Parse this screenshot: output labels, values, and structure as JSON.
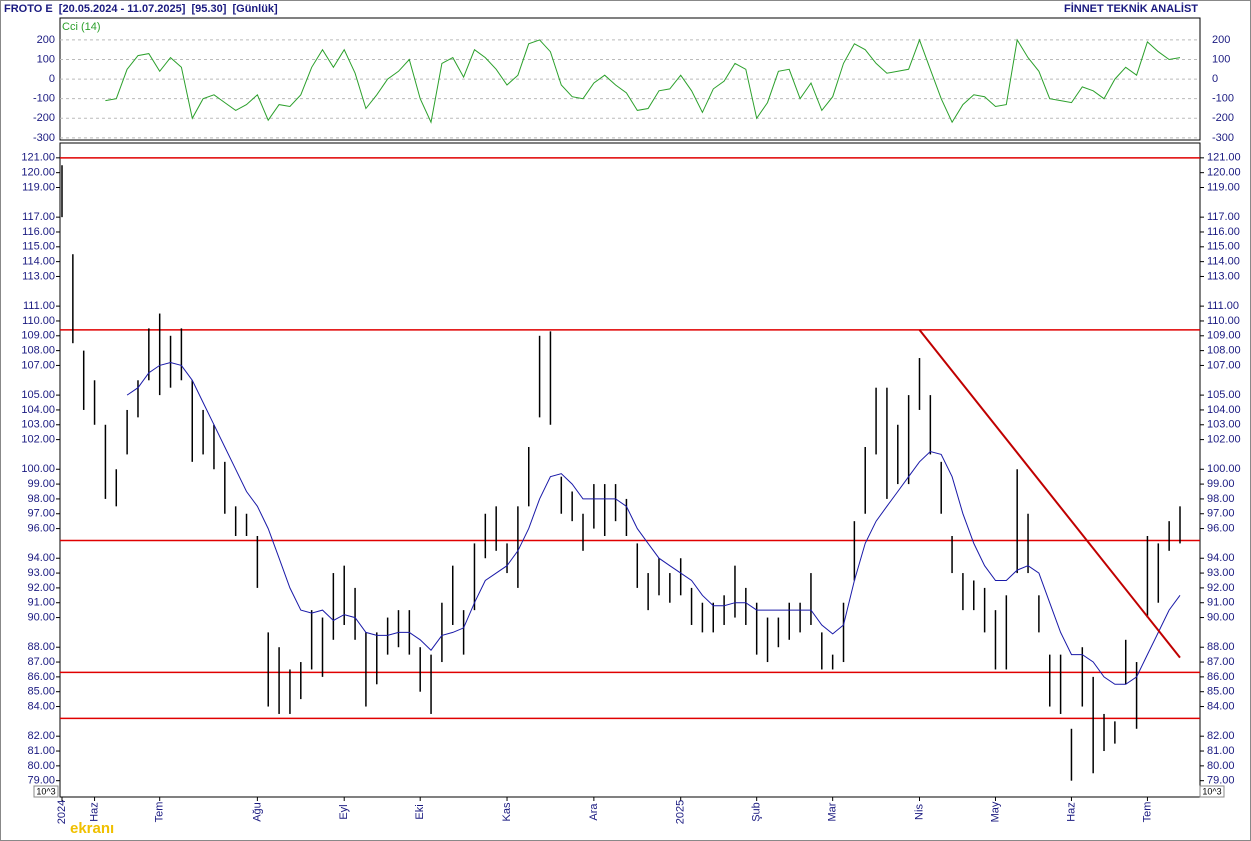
{
  "chart_data": {
    "type": "ohlc",
    "title": "FROTO E  [20.05.2024 - 11.07.2025]  [95.30]  [Günlük]",
    "source": "FİNNET TEKNİK ANALİST",
    "watermark": "ekranı",
    "scale_note": "10^3",
    "categories": [
      "2024",
      null,
      null,
      "Haz",
      null,
      null,
      null,
      null,
      null,
      "Tem",
      null,
      null,
      null,
      null,
      null,
      null,
      null,
      null,
      "Ağu",
      null,
      null,
      null,
      null,
      null,
      null,
      null,
      "Eyl",
      null,
      null,
      null,
      null,
      null,
      null,
      "Eki",
      null,
      null,
      null,
      null,
      null,
      null,
      null,
      "Kas",
      null,
      null,
      null,
      null,
      null,
      null,
      null,
      "Ara",
      null,
      null,
      null,
      null,
      null,
      null,
      null,
      "2025",
      null,
      null,
      null,
      null,
      null,
      null,
      "Şub",
      null,
      null,
      null,
      null,
      null,
      null,
      "Mar",
      null,
      null,
      null,
      null,
      null,
      null,
      null,
      "Nis",
      null,
      null,
      null,
      null,
      null,
      null,
      "May",
      null,
      null,
      null,
      null,
      null,
      null,
      "Haz",
      null,
      null,
      null,
      null,
      null,
      null,
      "Tem",
      null,
      null,
      null
    ],
    "high": [
      120.5,
      114.5,
      108,
      106,
      103,
      100,
      104,
      106,
      109.5,
      110.5,
      109,
      109.5,
      106,
      104,
      103,
      100.5,
      97.5,
      97,
      95.5,
      89,
      88,
      86.5,
      87,
      90.5,
      90,
      93,
      93.5,
      92,
      89,
      89,
      90,
      90.5,
      90.5,
      88,
      87.5,
      91,
      93.5,
      90.5,
      95,
      97,
      97.5,
      95,
      97.5,
      101.5,
      109,
      109.3,
      99.5,
      98.5,
      97,
      99,
      99,
      99,
      98,
      95,
      93,
      94,
      93,
      94,
      92,
      91,
      91,
      91.5,
      93.5,
      92,
      91,
      90,
      90,
      91,
      91,
      93,
      89,
      87.5,
      91,
      96.5,
      101.5,
      105.5,
      105.5,
      103,
      105,
      107.5,
      105,
      100.5,
      95.5,
      93,
      92.5,
      92,
      90.5,
      91.5,
      100,
      97,
      91.5,
      87.5,
      87.5,
      82.5,
      88,
      86,
      83.5,
      83,
      88.5,
      87,
      95.5,
      95,
      96.5,
      97.5
    ],
    "low": [
      117,
      108.5,
      104,
      103,
      98,
      97.5,
      101,
      103.5,
      106,
      105,
      105.5,
      106,
      100.5,
      101,
      100,
      97,
      95.5,
      95.5,
      92,
      84,
      83.5,
      83.5,
      84.5,
      86.5,
      86,
      88.5,
      89.5,
      88.5,
      84,
      85.5,
      87.5,
      88,
      87.5,
      85,
      83.5,
      87,
      89.5,
      87.5,
      90.5,
      94,
      94.5,
      93,
      92,
      97.5,
      103.5,
      103,
      97,
      96.5,
      94.5,
      96,
      95.5,
      96.5,
      95.5,
      92,
      90.5,
      91.5,
      91,
      91.5,
      89.5,
      89,
      89,
      89.5,
      90,
      89.5,
      87.5,
      87,
      88,
      88.5,
      89,
      89.5,
      86.5,
      86.5,
      87,
      92.5,
      97,
      101,
      98,
      99,
      99,
      104,
      101,
      97,
      93,
      90.5,
      90.5,
      89,
      86.5,
      86.5,
      93,
      93,
      89,
      84,
      83.5,
      79,
      84,
      79.5,
      81,
      81.5,
      85.5,
      82.5,
      90,
      91,
      94.5,
      95
    ],
    "ma": [
      null,
      null,
      null,
      null,
      null,
      null,
      105,
      105.5,
      106.5,
      107,
      107.2,
      107,
      106,
      104.5,
      103,
      101.5,
      100,
      98.5,
      97.5,
      96,
      94,
      92,
      90.5,
      90.3,
      90.5,
      89.8,
      90.2,
      90,
      89,
      88.8,
      88.8,
      89,
      89,
      88.5,
      87.8,
      88.8,
      89,
      89.3,
      91,
      92.5,
      93,
      93.5,
      94.5,
      96,
      98,
      99.5,
      99.7,
      99,
      98,
      98,
      98,
      98,
      97.5,
      96,
      95,
      94,
      93.5,
      93,
      92.5,
      91.5,
      90.8,
      90.8,
      91,
      91,
      90.5,
      90.5,
      90.5,
      90.5,
      90.5,
      90.5,
      89.5,
      88.9,
      89.5,
      92.5,
      95,
      96.5,
      97.5,
      98.5,
      99.5,
      100.5,
      101.2,
      101,
      99.5,
      97,
      95,
      93.5,
      92.5,
      92.5,
      93.2,
      93.5,
      93,
      91,
      89,
      87.5,
      87.5,
      87,
      86,
      85.5,
      85.5,
      86,
      87.5,
      89,
      90.5,
      91.5
    ],
    "bar_color": "#000000",
    "ma_color": "#1a1aa8",
    "ylim": [
      77.9,
      122.0
    ],
    "yticks": [
      {
        "value": 79,
        "label": "79.00"
      },
      {
        "value": 80,
        "label": "80.00"
      },
      {
        "value": 81,
        "label": "81.00"
      },
      {
        "value": 82,
        "label": "82.00"
      },
      {
        "value": 84,
        "label": "84.00"
      },
      {
        "value": 85,
        "label": "85.00"
      },
      {
        "value": 86,
        "label": "86.00"
      },
      {
        "value": 87,
        "label": "87.00"
      },
      {
        "value": 88,
        "label": "88.00"
      },
      {
        "value": 90,
        "label": "90.00"
      },
      {
        "value": 91,
        "label": "91.00"
      },
      {
        "value": 92,
        "label": "92.00"
      },
      {
        "value": 93,
        "label": "93.00"
      },
      {
        "value": 94,
        "label": "94.00"
      },
      {
        "value": 96,
        "label": "96.00"
      },
      {
        "value": 97,
        "label": "97.00"
      },
      {
        "value": 98,
        "label": "98.00"
      },
      {
        "value": 99,
        "label": "99.00"
      },
      {
        "value": 100,
        "label": "100.00"
      },
      {
        "value": 102,
        "label": "102.00"
      },
      {
        "value": 103,
        "label": "103.00"
      },
      {
        "value": 104,
        "label": "104.00"
      },
      {
        "value": 105,
        "label": "105.00"
      },
      {
        "value": 107,
        "label": "107.00"
      },
      {
        "value": 108,
        "label": "108.00"
      },
      {
        "value": 109,
        "label": "109.00"
      },
      {
        "value": 110,
        "label": "110.00"
      },
      {
        "value": 111,
        "label": "111.00"
      },
      {
        "value": 113,
        "label": "113.00"
      },
      {
        "value": 114,
        "label": "114.00"
      },
      {
        "value": 115,
        "label": "115.00"
      },
      {
        "value": 116,
        "label": "116.00"
      },
      {
        "value": 117,
        "label": "117.00"
      },
      {
        "value": 119,
        "label": "119.00"
      },
      {
        "value": 120,
        "label": "120.00"
      },
      {
        "value": 121,
        "label": "121.00"
      }
    ],
    "hlines": [
      121.0,
      109.4,
      95.2,
      86.3,
      83.2
    ],
    "hline_color": "#e00000",
    "trendline": {
      "x": [
        79,
        103
      ],
      "y": [
        109.4,
        87.3
      ],
      "color": "#c00000"
    },
    "cci": {
      "label": "Cci (14)",
      "color": "#2ca02c",
      "values": [
        null,
        null,
        null,
        null,
        -110,
        -100,
        50,
        120,
        130,
        40,
        110,
        60,
        -200,
        -100,
        -80,
        -120,
        -160,
        -130,
        -80,
        -210,
        -130,
        -140,
        -80,
        60,
        150,
        60,
        150,
        30,
        -150,
        -80,
        0,
        40,
        100,
        -100,
        -220,
        80,
        110,
        10,
        150,
        110,
        50,
        -30,
        20,
        180,
        200,
        140,
        -30,
        -90,
        -100,
        -20,
        20,
        -30,
        -70,
        -160,
        -150,
        -60,
        -50,
        20,
        -60,
        -170,
        -50,
        -10,
        80,
        50,
        -200,
        -120,
        40,
        50,
        -100,
        -20,
        -160,
        -90,
        80,
        180,
        150,
        80,
        30,
        40,
        50,
        200,
        50,
        -100,
        -220,
        -130,
        -80,
        -90,
        -140,
        -130,
        200,
        110,
        40,
        -100,
        -110,
        -120,
        -40,
        -60,
        -100,
        0,
        60,
        20,
        190,
        140,
        100,
        110
      ],
      "ylim": [
        -311,
        312
      ],
      "yticks": [
        200,
        100,
        0,
        -100,
        -200,
        -300
      ],
      "grid": true
    }
  }
}
